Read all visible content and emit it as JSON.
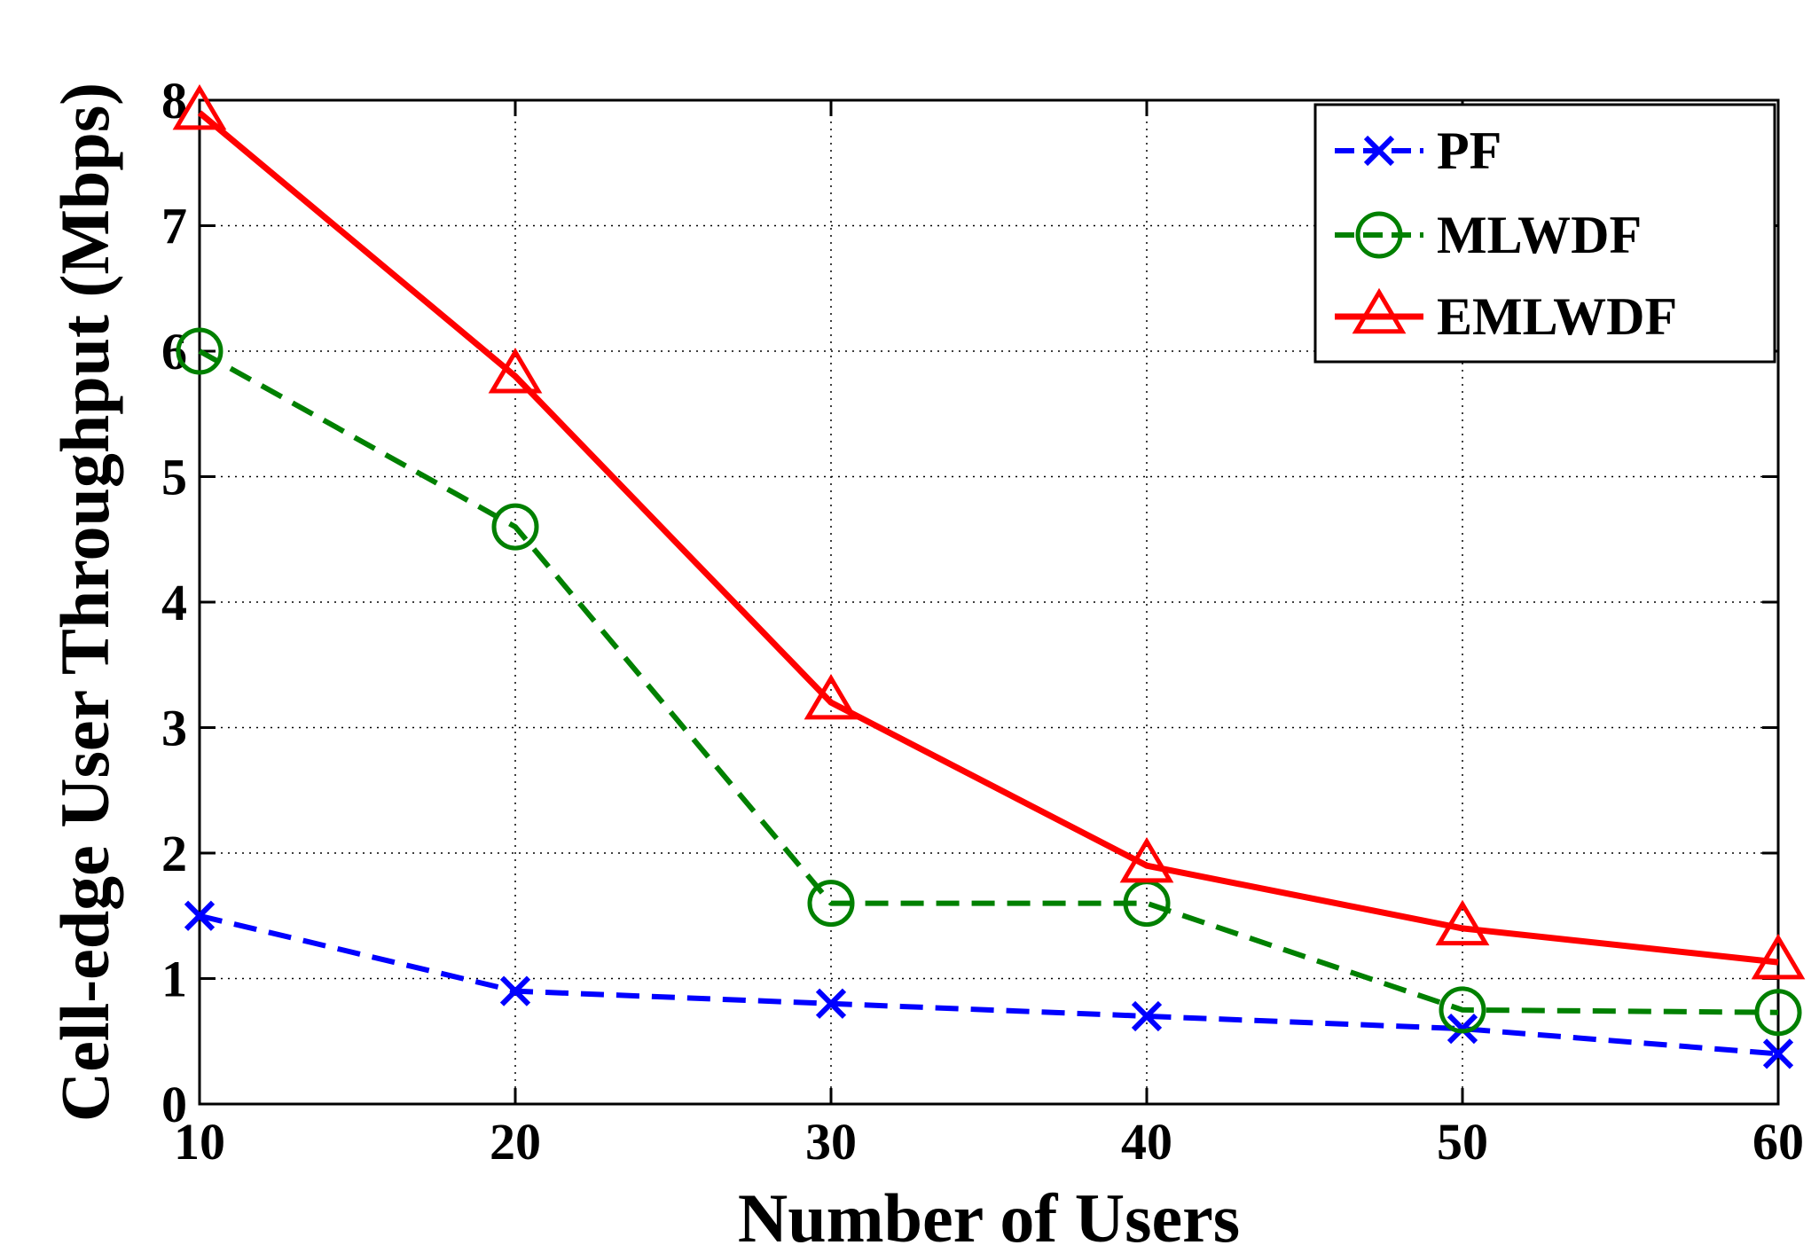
{
  "chart_data": {
    "type": "line",
    "title": "",
    "xlabel": "Number of Users",
    "ylabel": "Cell-edge User Throughput (Mbps)",
    "x": [
      10,
      20,
      30,
      40,
      50,
      60
    ],
    "xticks": [
      "10",
      "20",
      "30",
      "40",
      "50",
      "60"
    ],
    "yticks": [
      "0",
      "1",
      "2",
      "3",
      "4",
      "5",
      "6",
      "7",
      "8"
    ],
    "xlim": [
      10,
      60
    ],
    "ylim": [
      0,
      8
    ],
    "grid": true,
    "legend_position": "top-right",
    "series": [
      {
        "name": "PF",
        "color": "#0000ff",
        "line_style": "dashed",
        "marker": "x",
        "values": [
          1.5,
          0.9,
          0.8,
          0.7,
          0.6,
          0.4
        ]
      },
      {
        "name": "MLWDF",
        "color": "#008000",
        "line_style": "dashed",
        "marker": "circle",
        "values": [
          6.0,
          4.6,
          1.6,
          1.6,
          0.75,
          0.73
        ]
      },
      {
        "name": "EMLWDF",
        "color": "#ff0000",
        "line_style": "solid",
        "marker": "triangle",
        "values": [
          7.9,
          5.8,
          3.2,
          1.9,
          1.4,
          1.13
        ]
      }
    ]
  }
}
